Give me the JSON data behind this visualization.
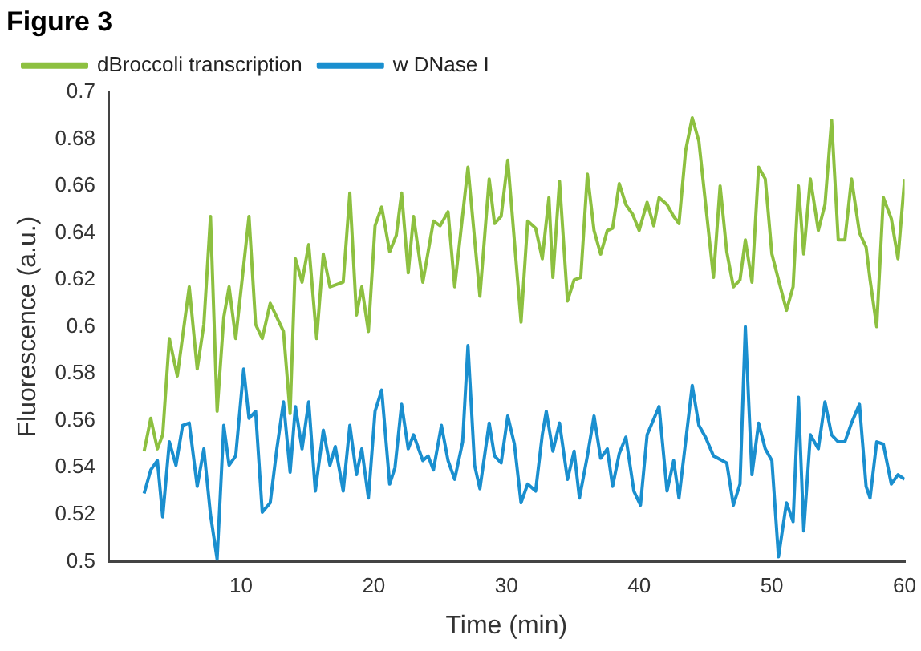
{
  "chart_data": {
    "type": "line",
    "title": "Figure 3",
    "xlabel": "Time (min)",
    "ylabel": "Fluorescence (a.u.)",
    "xlim": [
      0,
      60
    ],
    "xticks": [
      10,
      20,
      30,
      40,
      50,
      60
    ],
    "ylim": [
      0.5,
      0.7
    ],
    "yticks": [
      0.5,
      0.52,
      0.54,
      0.56,
      0.58,
      0.6,
      0.62,
      0.64,
      0.66,
      0.68,
      0.7
    ],
    "grid": false,
    "legend": "top left",
    "marker": "none",
    "line_style": "solid",
    "series": [
      {
        "name": "dBroccoli transcription",
        "color": "#8dc040",
        "x": [
          2.7,
          3.2,
          3.7,
          4.1,
          4.6,
          5.2,
          6.1,
          6.7,
          7.2,
          7.7,
          8.2,
          8.7,
          9.1,
          9.6,
          10.6,
          11.1,
          11.6,
          12.2,
          13.2,
          13.7,
          14.1,
          14.6,
          15.1,
          15.7,
          16.2,
          16.7,
          17.7,
          18.2,
          18.7,
          19.1,
          19.6,
          20.1,
          20.6,
          21.2,
          21.7,
          22.1,
          22.6,
          23.0,
          23.7,
          24.5,
          25.0,
          25.6,
          26.1,
          27.1,
          28.0,
          28.7,
          29.1,
          29.6,
          30.1,
          31.1,
          31.6,
          32.2,
          32.7,
          33.2,
          33.5,
          34.0,
          34.6,
          35.1,
          35.6,
          36.1,
          36.6,
          37.1,
          37.6,
          38.0,
          38.5,
          39.0,
          39.5,
          40.0,
          40.6,
          41.1,
          41.5,
          42.1,
          42.6,
          43.0,
          43.5,
          44.0,
          44.5,
          45.6,
          46.1,
          46.6,
          47.1,
          47.6,
          48.0,
          48.5,
          49.0,
          49.5,
          50.0,
          50.5,
          51.1,
          51.6,
          52.0,
          52.4,
          52.9,
          53.5,
          54.0,
          54.5,
          55.0,
          55.5,
          56.0,
          56.6,
          57.1,
          57.4,
          57.9,
          58.4,
          59.0,
          59.5,
          60.0
        ],
        "values": [
          0.547,
          0.561,
          0.548,
          0.554,
          0.595,
          0.579,
          0.617,
          0.582,
          0.601,
          0.647,
          0.564,
          0.604,
          0.617,
          0.595,
          0.647,
          0.601,
          0.595,
          0.61,
          0.598,
          0.563,
          0.629,
          0.619,
          0.635,
          0.595,
          0.631,
          0.617,
          0.619,
          0.657,
          0.605,
          0.617,
          0.598,
          0.643,
          0.651,
          0.632,
          0.639,
          0.657,
          0.623,
          0.647,
          0.619,
          0.645,
          0.643,
          0.649,
          0.617,
          0.668,
          0.613,
          0.663,
          0.644,
          0.647,
          0.671,
          0.602,
          0.645,
          0.642,
          0.629,
          0.655,
          0.621,
          0.662,
          0.611,
          0.62,
          0.621,
          0.665,
          0.641,
          0.631,
          0.641,
          0.642,
          0.661,
          0.652,
          0.648,
          0.641,
          0.653,
          0.643,
          0.655,
          0.652,
          0.647,
          0.644,
          0.675,
          0.689,
          0.679,
          0.621,
          0.66,
          0.632,
          0.617,
          0.62,
          0.637,
          0.619,
          0.668,
          0.663,
          0.631,
          0.62,
          0.607,
          0.617,
          0.66,
          0.631,
          0.663,
          0.641,
          0.652,
          0.688,
          0.637,
          0.637,
          0.663,
          0.64,
          0.634,
          0.62,
          0.6,
          0.655,
          0.646,
          0.629,
          0.663
        ]
      },
      {
        "name": "w DNase I",
        "color": "#1a8fcf",
        "x": [
          2.7,
          3.2,
          3.7,
          4.1,
          4.6,
          5.1,
          5.6,
          6.1,
          6.7,
          7.2,
          7.7,
          8.2,
          8.7,
          9.1,
          9.6,
          10.2,
          10.6,
          11.1,
          11.6,
          12.2,
          12.7,
          13.2,
          13.7,
          14.1,
          14.6,
          15.1,
          15.6,
          16.2,
          16.7,
          17.1,
          17.7,
          18.2,
          18.7,
          19.1,
          19.6,
          20.1,
          20.6,
          21.2,
          21.6,
          22.1,
          22.6,
          23.0,
          23.7,
          24.1,
          24.5,
          25.1,
          25.6,
          26.1,
          26.7,
          27.1,
          27.6,
          28.0,
          28.7,
          29.1,
          29.6,
          30.1,
          30.6,
          31.1,
          31.6,
          32.2,
          32.7,
          33.0,
          33.5,
          34.0,
          34.6,
          35.1,
          35.5,
          36.1,
          36.6,
          37.1,
          37.6,
          38.0,
          38.5,
          39.0,
          39.6,
          40.1,
          40.6,
          41.5,
          42.1,
          42.6,
          43.0,
          44.0,
          44.5,
          45.0,
          45.6,
          46.6,
          47.1,
          47.6,
          48.0,
          48.5,
          49.0,
          49.5,
          50.0,
          50.5,
          51.1,
          51.6,
          52.0,
          52.4,
          52.9,
          53.5,
          54.0,
          54.5,
          55.0,
          55.5,
          56.0,
          56.6,
          57.1,
          57.4,
          57.9,
          58.4,
          59.0,
          59.5,
          60.0
        ],
        "values": [
          0.529,
          0.539,
          0.543,
          0.519,
          0.551,
          0.541,
          0.558,
          0.559,
          0.532,
          0.548,
          0.52,
          0.501,
          0.558,
          0.541,
          0.545,
          0.582,
          0.561,
          0.564,
          0.521,
          0.525,
          0.548,
          0.568,
          0.538,
          0.566,
          0.548,
          0.568,
          0.53,
          0.556,
          0.541,
          0.549,
          0.53,
          0.558,
          0.537,
          0.548,
          0.527,
          0.564,
          0.573,
          0.533,
          0.54,
          0.567,
          0.548,
          0.554,
          0.543,
          0.545,
          0.539,
          0.558,
          0.543,
          0.535,
          0.551,
          0.592,
          0.541,
          0.531,
          0.559,
          0.545,
          0.542,
          0.562,
          0.55,
          0.525,
          0.533,
          0.53,
          0.554,
          0.564,
          0.547,
          0.559,
          0.535,
          0.547,
          0.527,
          0.545,
          0.562,
          0.544,
          0.548,
          0.532,
          0.546,
          0.553,
          0.53,
          0.524,
          0.554,
          0.566,
          0.53,
          0.543,
          0.527,
          0.575,
          0.558,
          0.553,
          0.545,
          0.542,
          0.524,
          0.533,
          0.6,
          0.537,
          0.559,
          0.548,
          0.543,
          0.502,
          0.525,
          0.517,
          0.57,
          0.513,
          0.554,
          0.548,
          0.568,
          0.554,
          0.551,
          0.551,
          0.559,
          0.567,
          0.532,
          0.527,
          0.551,
          0.55,
          0.533,
          0.537,
          0.535
        ]
      }
    ]
  }
}
